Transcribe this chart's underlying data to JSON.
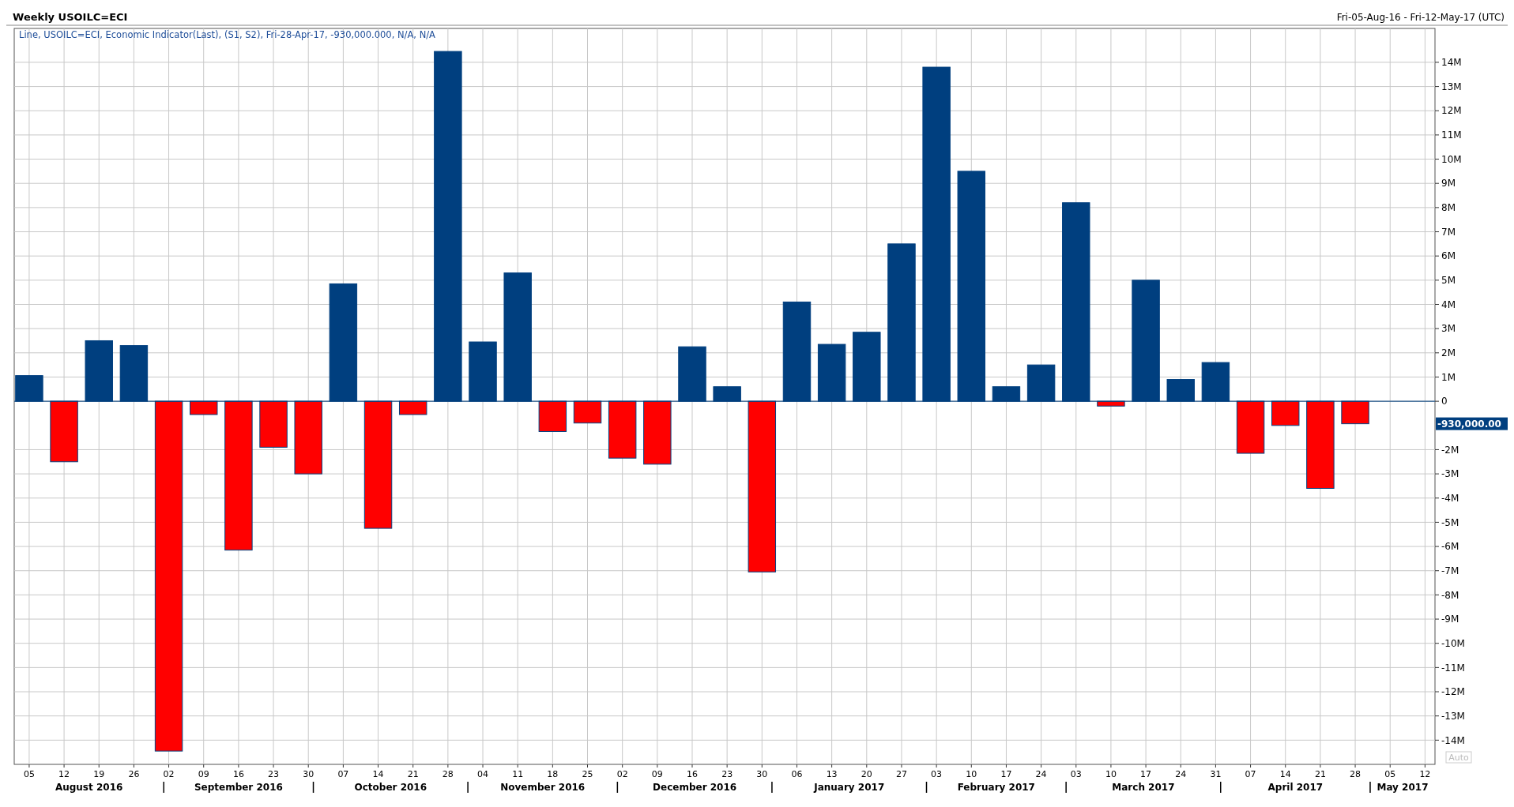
{
  "chart_data": {
    "type": "bar",
    "title": "Weekly USOILC=ECI",
    "subtitle": "Line, USOILC=ECI, Economic Indicator(Last), (S1, S2), Fri-28-Apr-17, -930,000.000, N/A, N/A",
    "x": [
      "2016-08-05",
      "2016-08-12",
      "2016-08-19",
      "2016-08-26",
      "2016-09-02",
      "2016-09-09",
      "2016-09-16",
      "2016-09-23",
      "2016-09-30",
      "2016-10-07",
      "2016-10-14",
      "2016-10-21",
      "2016-10-28",
      "2016-11-04",
      "2016-11-11",
      "2016-11-18",
      "2016-11-25",
      "2016-12-02",
      "2016-12-09",
      "2016-12-16",
      "2016-12-23",
      "2016-12-30",
      "2017-01-06",
      "2017-01-13",
      "2017-01-20",
      "2017-01-27",
      "2017-02-03",
      "2017-02-10",
      "2017-02-17",
      "2017-02-24",
      "2017-03-03",
      "2017-03-10",
      "2017-03-17",
      "2017-03-24",
      "2017-03-31",
      "2017-04-07",
      "2017-04-14",
      "2017-04-21",
      "2017-04-28"
    ],
    "values": [
      1060000,
      -2500000,
      2500000,
      2300000,
      -14450000,
      -550000,
      -6150000,
      -1900000,
      -3000000,
      4850000,
      -5250000,
      -550000,
      14450000,
      2450000,
      5300000,
      -1250000,
      -900000,
      -2350000,
      -2600000,
      2250000,
      600000,
      -7050000,
      4100000,
      2350000,
      2850000,
      6500000,
      13800000,
      9500000,
      600000,
      1500000,
      8200000,
      -200000,
      5000000,
      900000,
      1600000,
      -2150000,
      -1000000,
      -3600000,
      -930000
    ],
    "colors": [
      "#003f7f",
      "#ff0000",
      "#003f7f",
      "#003f7f",
      "#ff0000",
      "#ff0000",
      "#ff0000",
      "#ff0000",
      "#ff0000",
      "#003f7f",
      "#ff0000",
      "#ff0000",
      "#003f7f",
      "#003f7f",
      "#003f7f",
      "#ff0000",
      "#ff0000",
      "#ff0000",
      "#ff0000",
      "#003f7f",
      "#003f7f",
      "#ff0000",
      "#003f7f",
      "#003f7f",
      "#003f7f",
      "#003f7f",
      "#003f7f",
      "#003f7f",
      "#003f7f",
      "#003f7f",
      "#003f7f",
      "#ff0000",
      "#003f7f",
      "#003f7f",
      "#003f7f",
      "#ff0000",
      "#ff0000",
      "#ff0000",
      "#ff0000"
    ],
    "xlim": [
      "2016-08-02",
      "2017-05-14"
    ],
    "xticks": [
      {
        "value": "2016-08-05",
        "label": "05"
      },
      {
        "value": "2016-08-12",
        "label": "12"
      },
      {
        "value": "2016-08-19",
        "label": "19"
      },
      {
        "value": "2016-08-26",
        "label": "26"
      },
      {
        "value": "2016-09-02",
        "label": "02"
      },
      {
        "value": "2016-09-09",
        "label": "09"
      },
      {
        "value": "2016-09-16",
        "label": "16"
      },
      {
        "value": "2016-09-23",
        "label": "23"
      },
      {
        "value": "2016-09-30",
        "label": "30"
      },
      {
        "value": "2016-10-07",
        "label": "07"
      },
      {
        "value": "2016-10-14",
        "label": "14"
      },
      {
        "value": "2016-10-21",
        "label": "21"
      },
      {
        "value": "2016-10-28",
        "label": "28"
      },
      {
        "value": "2016-11-04",
        "label": "04"
      },
      {
        "value": "2016-11-11",
        "label": "11"
      },
      {
        "value": "2016-11-18",
        "label": "18"
      },
      {
        "value": "2016-11-25",
        "label": "25"
      },
      {
        "value": "2016-12-02",
        "label": "02"
      },
      {
        "value": "2016-12-09",
        "label": "09"
      },
      {
        "value": "2016-12-16",
        "label": "16"
      },
      {
        "value": "2016-12-23",
        "label": "23"
      },
      {
        "value": "2016-12-30",
        "label": "30"
      },
      {
        "value": "2017-01-06",
        "label": "06"
      },
      {
        "value": "2017-01-13",
        "label": "13"
      },
      {
        "value": "2017-01-20",
        "label": "20"
      },
      {
        "value": "2017-01-27",
        "label": "27"
      },
      {
        "value": "2017-02-03",
        "label": "03"
      },
      {
        "value": "2017-02-10",
        "label": "10"
      },
      {
        "value": "2017-02-17",
        "label": "17"
      },
      {
        "value": "2017-02-24",
        "label": "24"
      },
      {
        "value": "2017-03-03",
        "label": "03"
      },
      {
        "value": "2017-03-10",
        "label": "10"
      },
      {
        "value": "2017-03-17",
        "label": "17"
      },
      {
        "value": "2017-03-24",
        "label": "24"
      },
      {
        "value": "2017-03-31",
        "label": "31"
      },
      {
        "value": "2017-04-07",
        "label": "07"
      },
      {
        "value": "2017-04-14",
        "label": "14"
      },
      {
        "value": "2017-04-21",
        "label": "21"
      },
      {
        "value": "2017-04-28",
        "label": "28"
      },
      {
        "value": "2017-05-05",
        "label": "05"
      },
      {
        "value": "2017-05-12",
        "label": "12"
      }
    ],
    "ylim": [
      -15000000,
      15400000
    ],
    "yticks": [
      {
        "value": 14000000,
        "label": "14M"
      },
      {
        "value": 13000000,
        "label": "13M"
      },
      {
        "value": 12000000,
        "label": "12M"
      },
      {
        "value": 11000000,
        "label": "11M"
      },
      {
        "value": 10000000,
        "label": "10M"
      },
      {
        "value": 9000000,
        "label": "9M"
      },
      {
        "value": 8000000,
        "label": "8M"
      },
      {
        "value": 7000000,
        "label": "7M"
      },
      {
        "value": 6000000,
        "label": "6M"
      },
      {
        "value": 5000000,
        "label": "5M"
      },
      {
        "value": 4000000,
        "label": "4M"
      },
      {
        "value": 3000000,
        "label": "3M"
      },
      {
        "value": 2000000,
        "label": "2M"
      },
      {
        "value": 1000000,
        "label": "1M"
      },
      0,
      {
        "value": -2000000,
        "label": "-2M"
      },
      {
        "value": -3000000,
        "label": "-3M"
      },
      {
        "value": -4000000,
        "label": "-4M"
      },
      {
        "value": -5000000,
        "label": "-5M"
      },
      {
        "value": -6000000,
        "label": "-6M"
      },
      {
        "value": -7000000,
        "label": "-7M"
      },
      {
        "value": -8000000,
        "label": "-8M"
      },
      {
        "value": -9000000,
        "label": "-9M"
      },
      {
        "value": -10000000,
        "label": "-10M"
      },
      {
        "value": -11000000,
        "label": "-11M"
      },
      {
        "value": -12000000,
        "label": "-12M"
      },
      {
        "value": -13000000,
        "label": "-13M"
      },
      {
        "value": -14000000,
        "label": "-14M"
      }
    ],
    "grid": true,
    "ref_lines": [
      {
        "axis": "y",
        "value": 0,
        "color": "#003f7f"
      }
    ],
    "annotations": [
      "Fri-05-Aug-16 - Fri-12-May-17 (UTC)",
      "Auto",
      "-930,000.00",
      "August 2016",
      "September 2016",
      "October 2016",
      "November 2016",
      "December 2016",
      "January 2017",
      "February 2017",
      "March 2017",
      "April 2017",
      "May 2017"
    ]
  }
}
